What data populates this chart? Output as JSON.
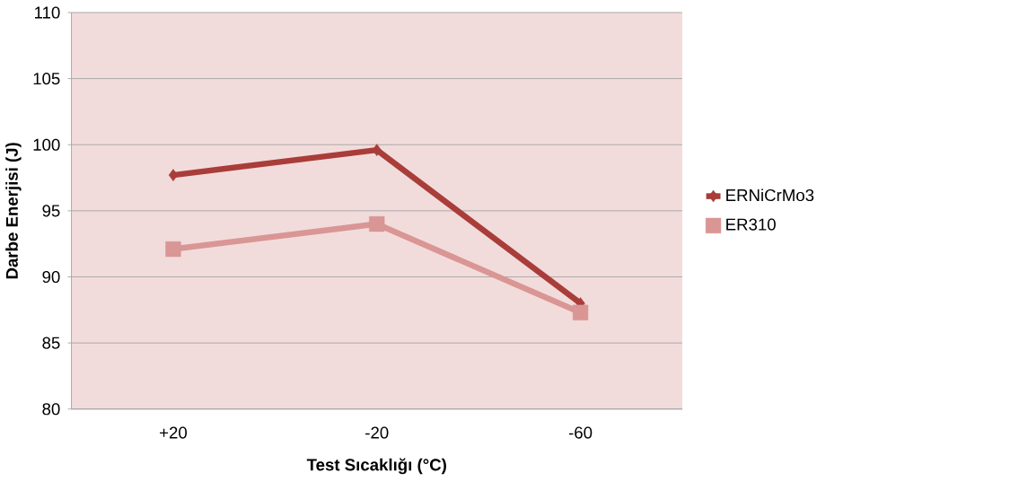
{
  "chart_data": {
    "type": "line",
    "xlabel": "Test Sıcaklığı  (°C)",
    "ylabel": "Darbe Enerjisi (J)",
    "categories": [
      "+20",
      "-20",
      "-60"
    ],
    "series": [
      {
        "name": "ERNiCrMo3",
        "color": "#a93d3a",
        "marker": "diamond",
        "values": [
          97.7,
          99.6,
          88.0
        ]
      },
      {
        "name": "ER310",
        "color": "#d99694",
        "marker": "square",
        "values": [
          92.1,
          94.0,
          87.3
        ]
      }
    ],
    "ylim": [
      80,
      110
    ],
    "yticks": [
      80,
      85,
      90,
      95,
      100,
      105,
      110
    ],
    "grid": "y",
    "legend": "right",
    "line_style": "solid"
  }
}
